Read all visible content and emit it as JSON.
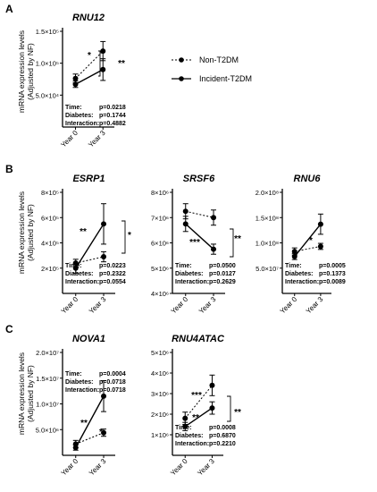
{
  "panel_letters": [
    "A",
    "B",
    "C"
  ],
  "ylabel_line1": "mRNA expression levels",
  "ylabel_line2": "(Adjusted by NF)",
  "legend": {
    "non_t2dm": "Non-T2DM",
    "incident_t2dm": "Incident-T2DM"
  },
  "stat_labels": {
    "time": "Time:",
    "diabetes": "Diabetes:",
    "interaction": "Interaction:"
  },
  "chart_data": [
    {
      "type": "line",
      "title": "RNU12",
      "panel": "A",
      "categories": [
        "Year 0",
        "Year 3"
      ],
      "yticks": [
        "5.0×10⁴",
        "1.0×10⁵",
        "1.5×10⁵"
      ],
      "ytick_values": [
        50000,
        100000,
        150000
      ],
      "ylim": [
        0,
        150000
      ],
      "series": [
        {
          "name": "Non-T2DM",
          "values": [
            76000,
            119000
          ],
          "err": [
            7000,
            15000
          ]
        },
        {
          "name": "Incident-T2DM",
          "values": [
            67000,
            90000
          ],
          "err": [
            5000,
            17000
          ]
        }
      ],
      "stats": {
        "time": "p=0.0218",
        "diabetes": "p=0.1744",
        "interaction": "p=0.4882"
      },
      "annotations": [
        "*",
        "**"
      ]
    },
    {
      "type": "line",
      "title": "ESRP1",
      "panel": "B",
      "categories": [
        "Year 0",
        "Year 3"
      ],
      "yticks": [
        "2×10⁵",
        "4×10⁵",
        "6×10⁵",
        "8×10⁵"
      ],
      "ytick_values": [
        200000,
        400000,
        600000,
        800000
      ],
      "ylim": [
        0,
        800000
      ],
      "series": [
        {
          "name": "Non-T2DM",
          "values": [
            240000,
            290000
          ],
          "err": [
            30000,
            40000
          ]
        },
        {
          "name": "Incident-T2DM",
          "values": [
            200000,
            550000
          ],
          "err": [
            40000,
            160000
          ]
        }
      ],
      "stats": {
        "time": "p=0.0223",
        "diabetes": "p=0.2322",
        "interaction": "p=0.0554"
      },
      "annotations": [
        "**",
        "*"
      ]
    },
    {
      "type": "line",
      "title": "SRSF6",
      "panel": "B",
      "categories": [
        "Year 0",
        "Year 3"
      ],
      "yticks": [
        "4×10⁶",
        "5×10⁶",
        "6×10⁶",
        "7×10⁶",
        "8×10⁶"
      ],
      "ytick_values": [
        4000000,
        5000000,
        6000000,
        7000000,
        8000000
      ],
      "ylim": [
        4000000,
        8000000
      ],
      "series": [
        {
          "name": "Non-T2DM",
          "values": [
            7250000,
            7000000
          ],
          "err": [
            300000,
            300000
          ]
        },
        {
          "name": "Incident-T2DM",
          "values": [
            6750000,
            5750000
          ],
          "err": [
            300000,
            200000
          ]
        }
      ],
      "stats": {
        "time": "p=0.0500",
        "diabetes": "p=0.0127",
        "interaction": "p=0.2629"
      },
      "annotations": [
        "***",
        "**"
      ]
    },
    {
      "type": "line",
      "title": "RNU6",
      "panel": "B",
      "categories": [
        "Year 0",
        "Year 3"
      ],
      "yticks": [
        "5.0×10⁷",
        "1.0×10⁸",
        "1.5×10⁸",
        "2.0×10⁸"
      ],
      "ytick_values": [
        50000000,
        100000000,
        150000000,
        200000000
      ],
      "ylim": [
        0,
        200000000
      ],
      "series": [
        {
          "name": "Non-T2DM",
          "values": [
            83000000,
            93000000
          ],
          "err": [
            7000000,
            6000000
          ]
        },
        {
          "name": "Incident-T2DM",
          "values": [
            73000000,
            137000000
          ],
          "err": [
            6000000,
            20000000
          ]
        }
      ],
      "stats": {
        "time": "p=0.0005",
        "diabetes": "p=0.1373",
        "interaction": "p=0.0089"
      },
      "annotations": [
        "*"
      ]
    },
    {
      "type": "line",
      "title": "NOVA1",
      "panel": "C",
      "categories": [
        "Year 0",
        "Year 3"
      ],
      "yticks": [
        "5.0×10⁶",
        "1.0×10⁷",
        "1.5×10⁷",
        "2.0×10⁷"
      ],
      "ytick_values": [
        5000000,
        10000000,
        15000000,
        20000000
      ],
      "ylim": [
        0,
        20000000
      ],
      "series": [
        {
          "name": "Non-T2DM",
          "values": [
            2200000,
            4400000
          ],
          "err": [
            700000,
            700000
          ]
        },
        {
          "name": "Incident-T2DM",
          "values": [
            1500000,
            11500000
          ],
          "err": [
            500000,
            3000000
          ]
        }
      ],
      "stats": {
        "time": "p=0.0004",
        "diabetes": "p=0.0718",
        "interaction": "p=0.0718"
      },
      "annotations": [
        "**",
        "*"
      ]
    },
    {
      "type": "line",
      "title": "RNU4ATAC",
      "panel": "C",
      "categories": [
        "Year 0",
        "Year 3"
      ],
      "yticks": [
        "1×10⁶",
        "2×10⁶",
        "3×10⁶",
        "4×10⁶",
        "5×10⁶"
      ],
      "ytick_values": [
        1000000,
        2000000,
        3000000,
        4000000,
        5000000
      ],
      "ylim": [
        0,
        5000000
      ],
      "series": [
        {
          "name": "Non-T2DM",
          "values": [
            1800000,
            3400000
          ],
          "err": [
            300000,
            500000
          ]
        },
        {
          "name": "Incident-T2DM",
          "values": [
            1400000,
            2300000
          ],
          "err": [
            200000,
            300000
          ]
        }
      ],
      "stats": {
        "time": "p=0.0008",
        "diabetes": "p=0.6870",
        "interaction": "p=0.2210"
      },
      "annotations": [
        "***",
        "**",
        "**"
      ]
    }
  ]
}
